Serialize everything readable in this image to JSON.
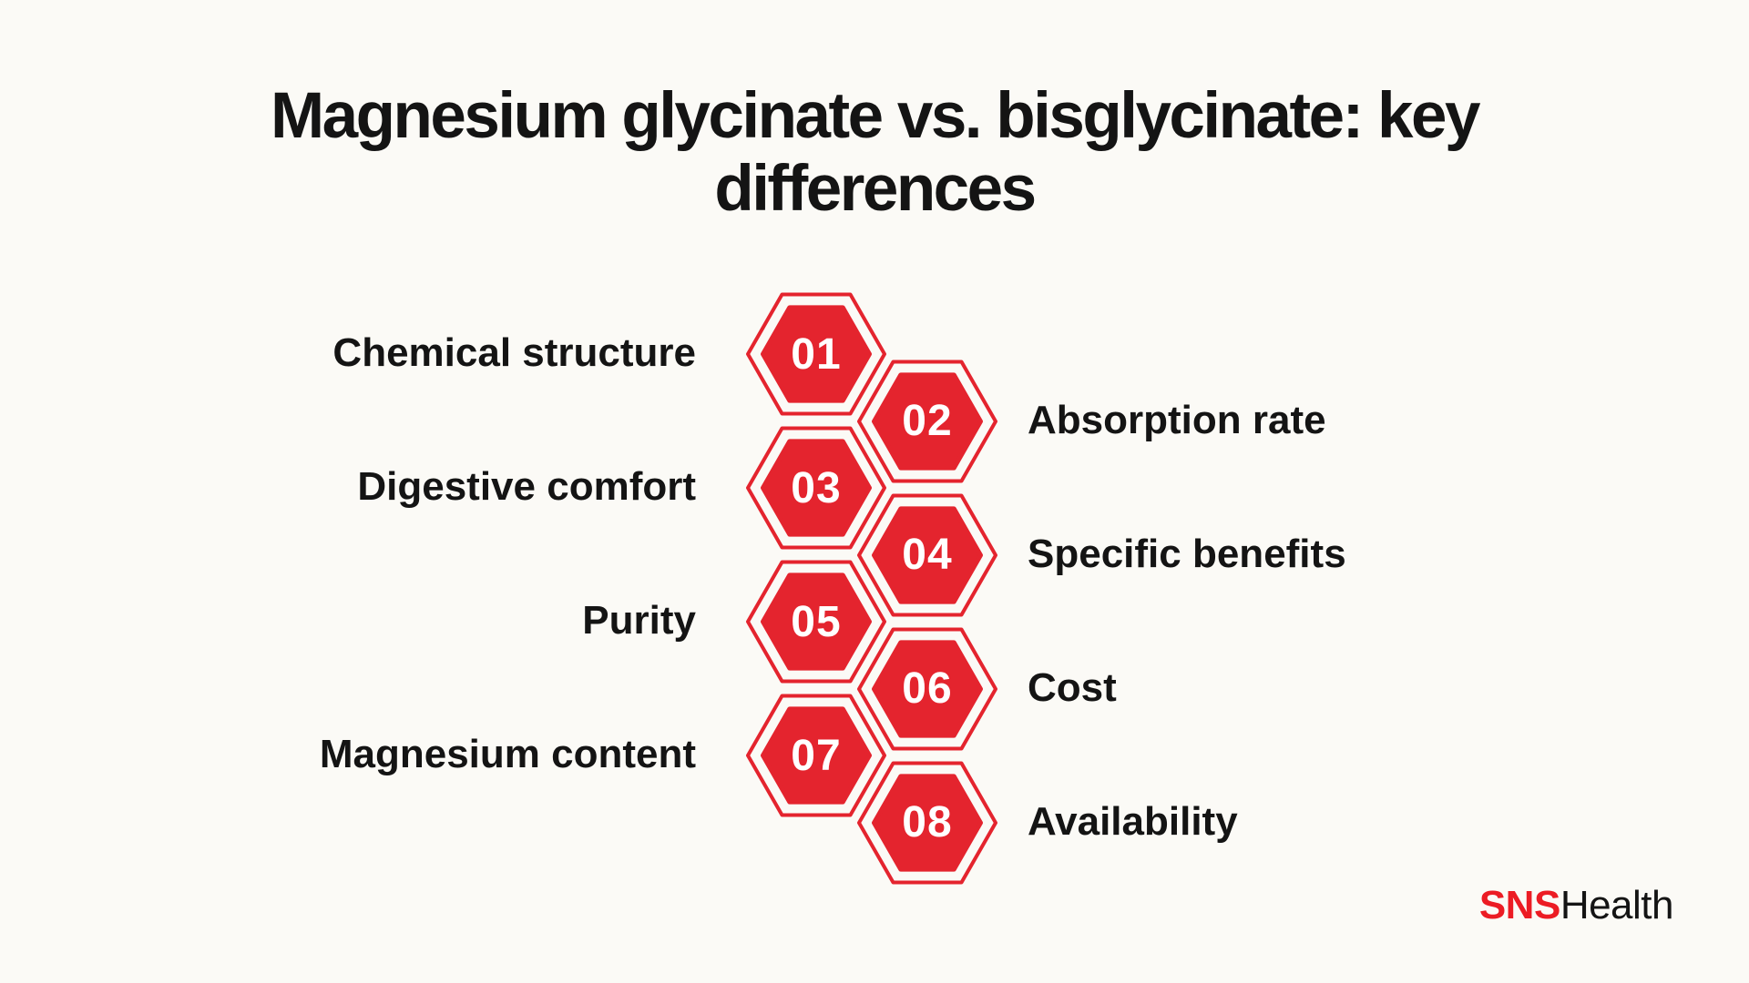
{
  "title": {
    "lines": [
      "Magnesium glycinate vs. bisglycinate: key",
      "differences"
    ]
  },
  "items": [
    {
      "number": "01",
      "label": "Chemical structure",
      "side": "left"
    },
    {
      "number": "02",
      "label": "Absorption rate",
      "side": "right"
    },
    {
      "number": "03",
      "label": "Digestive comfort",
      "side": "left"
    },
    {
      "number": "04",
      "label": "Specific benefits",
      "side": "right"
    },
    {
      "number": "05",
      "label": "Purity",
      "side": "left"
    },
    {
      "number": "06",
      "label": "Cost",
      "side": "right"
    },
    {
      "number": "07",
      "label": "Magnesium content",
      "side": "left"
    },
    {
      "number": "08",
      "label": "Availability",
      "side": "right"
    }
  ],
  "logo": {
    "primary": "SNS",
    "secondary": "Health"
  },
  "colors": {
    "hexagon_red": "#e4242e",
    "logo_red": "#ec1c24",
    "text": "#141414",
    "background": "#fbfaf6",
    "number_white": "#ffffff"
  }
}
